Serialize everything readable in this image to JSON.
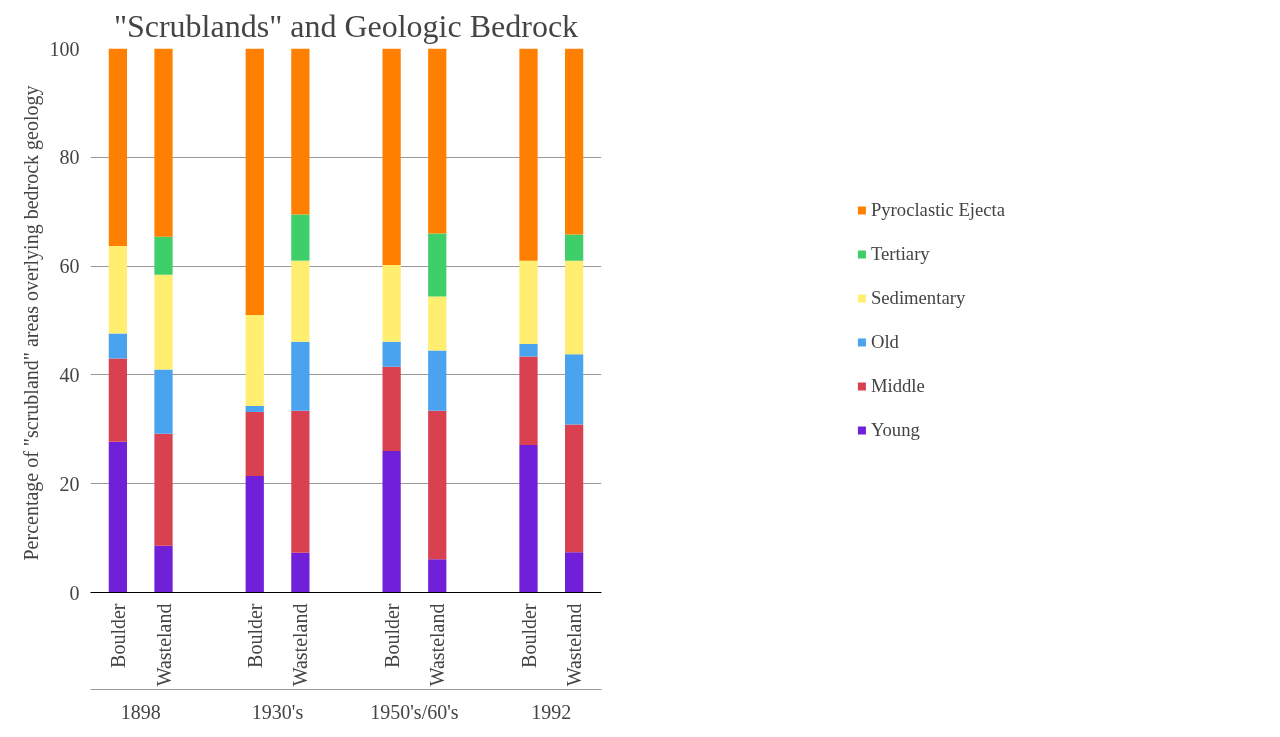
{
  "chart_data": {
    "type": "bar",
    "stacked": true,
    "title": "\"Scrublands\" and Geologic Bedrock",
    "ylabel": "Percentage of \"scrubland\"  areas overlying bedrock geology",
    "categories": [
      "Boulder",
      "Wasteland",
      null,
      "Boulder",
      "Wasteland",
      null,
      "Boulder",
      "Wasteland",
      null,
      "Boulder",
      "Wasteland"
    ],
    "annotations": [
      "1898",
      "1930's",
      "1950's/60's",
      "1992"
    ],
    "series": [
      {
        "name": "Young",
        "color": "#7020d8",
        "values": [
          27.7,
          8.6,
          null,
          21.4,
          7.3,
          null,
          26.0,
          6.1,
          null,
          27.1,
          7.4
        ]
      },
      {
        "name": "Middle",
        "color": "#d94050",
        "values": [
          15.3,
          20.6,
          null,
          11.8,
          26.1,
          null,
          15.5,
          27.3,
          null,
          16.3,
          23.5
        ]
      },
      {
        "name": "Old",
        "color": "#4aa3ef",
        "values": [
          4.6,
          11.8,
          null,
          1.1,
          12.7,
          null,
          4.6,
          11.1,
          null,
          2.3,
          12.9
        ]
      },
      {
        "name": "Sedimentary",
        "color": "#ffee70",
        "values": [
          16.1,
          17.4,
          null,
          16.7,
          14.9,
          null,
          14.1,
          9.9,
          null,
          15.3,
          17.2
        ]
      },
      {
        "name": "Tertiary",
        "color": "#3fcf6a",
        "values": [
          0,
          7.0,
          null,
          0,
          8.5,
          null,
          0,
          11.6,
          null,
          0,
          4.8
        ]
      },
      {
        "name": "Pyroclastic Ejecta",
        "color": "#ff8000",
        "values": [
          36.3,
          34.6,
          null,
          49.0,
          30.5,
          null,
          39.8,
          34.0,
          null,
          39.0,
          34.2
        ]
      }
    ],
    "ylim": [
      0,
      100
    ],
    "yticks": [
      0,
      20,
      40,
      60,
      80,
      100
    ],
    "grid": "y",
    "legend": "right"
  }
}
